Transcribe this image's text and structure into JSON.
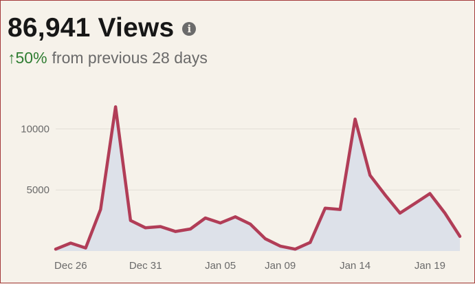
{
  "header": {
    "views_value": "86,941 Views",
    "info_glyph": "i",
    "change_percent": "↑50%",
    "change_text": "from previous 28 days"
  },
  "colors": {
    "line": "#b13d57",
    "area": "#dde1e9",
    "grid": "#e2ded6",
    "up": "#2f7d32"
  },
  "chart_data": {
    "type": "area",
    "title": "",
    "xlabel": "",
    "ylabel": "",
    "ylim": [
      0,
      12500
    ],
    "yticks": [
      5000,
      10000
    ],
    "ytick_labels": [
      "5000",
      "10000"
    ],
    "xtick_labels": [
      "Dec 26",
      "Dec 31",
      "Jan 05",
      "Jan 09",
      "Jan 14",
      "Jan 19"
    ],
    "xtick_indices": [
      1,
      6,
      11,
      15,
      20,
      25
    ],
    "grid": true,
    "series": [
      {
        "values": [
          150,
          650,
          250,
          3400,
          11800,
          2500,
          1900,
          2000,
          1600,
          1800,
          2700,
          2300,
          2800,
          2200,
          1000,
          400,
          150,
          700,
          3500,
          3400,
          10800,
          6200,
          4600,
          3100,
          3900,
          4700,
          3100,
          1200
        ]
      }
    ]
  }
}
